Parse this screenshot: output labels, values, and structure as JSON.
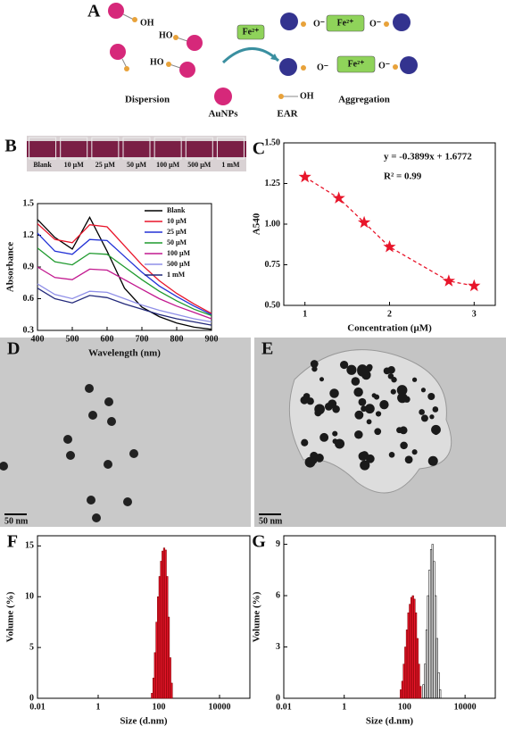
{
  "schematic": {
    "panel": "A",
    "ions": [
      "Fe²⁺",
      "Fe²⁺",
      "Fe²⁺"
    ],
    "hydroxyl_labels": [
      "OH",
      "HO",
      "HO",
      "OH"
    ],
    "oxide_labels": [
      "O⁻",
      "O⁻",
      "O⁻",
      "O⁻"
    ],
    "left_label": "Dispersion",
    "right_label": "Aggregation",
    "legend": [
      "AuNPs",
      "EAR"
    ]
  },
  "photo": {
    "panel": "B",
    "labels": [
      "Blank",
      "10 μM",
      "25 μM",
      "50 μM",
      "100 μM",
      "500 μM",
      "1 mM"
    ]
  },
  "tem": [
    {
      "panel": "D",
      "scale": "50 nm"
    },
    {
      "panel": "E",
      "scale": "50 nm"
    }
  ],
  "chart_data": [
    {
      "type": "line",
      "xlabel": "Wavelength (nm)",
      "ylabel": "Absorbance",
      "x": [
        400,
        450,
        500,
        550,
        600,
        650,
        700,
        750,
        800,
        850,
        900
      ],
      "xlim": [
        400,
        900
      ],
      "xticks": [
        400,
        500,
        600,
        700,
        800,
        900
      ],
      "ylim": [
        0.3,
        1.5
      ],
      "yticks": [
        0.3,
        0.6,
        0.9,
        1.2,
        1.5
      ],
      "legend": "upper right",
      "series": [
        {
          "name": "Blank",
          "color": "#000000",
          "values": [
            1.35,
            1.18,
            1.07,
            1.37,
            1.05,
            0.7,
            0.52,
            0.43,
            0.37,
            0.33,
            0.31
          ]
        },
        {
          "name": "10 μM",
          "color": "#e8152a",
          "values": [
            1.31,
            1.16,
            1.13,
            1.3,
            1.28,
            1.1,
            0.92,
            0.77,
            0.65,
            0.55,
            0.46
          ]
        },
        {
          "name": "25 μM",
          "color": "#2332d6",
          "values": [
            1.22,
            1.05,
            1.02,
            1.16,
            1.15,
            1.0,
            0.85,
            0.72,
            0.62,
            0.53,
            0.45
          ]
        },
        {
          "name": "50 μM",
          "color": "#1f9a2e",
          "values": [
            1.08,
            0.95,
            0.92,
            1.03,
            1.02,
            0.9,
            0.78,
            0.67,
            0.58,
            0.5,
            0.44
          ]
        },
        {
          "name": "100 μM",
          "color": "#c2188f",
          "values": [
            0.9,
            0.8,
            0.78,
            0.88,
            0.87,
            0.78,
            0.69,
            0.6,
            0.53,
            0.47,
            0.41
          ]
        },
        {
          "name": "500 μM",
          "color": "#8f8fe8",
          "values": [
            0.74,
            0.64,
            0.6,
            0.67,
            0.66,
            0.6,
            0.54,
            0.49,
            0.45,
            0.41,
            0.38
          ]
        },
        {
          "name": "1 mM",
          "color": "#22287a",
          "values": [
            0.7,
            0.6,
            0.56,
            0.63,
            0.61,
            0.55,
            0.5,
            0.45,
            0.41,
            0.38,
            0.35
          ]
        }
      ]
    },
    {
      "type": "scatter",
      "panel": "C",
      "xlabel": "Concentration (μM)",
      "ylabel": "A540",
      "x": [
        1,
        1.4,
        1.7,
        2,
        2.7,
        3
      ],
      "values": [
        1.29,
        1.16,
        1.01,
        0.86,
        0.65,
        0.62
      ],
      "color": "#e8152a",
      "xlim": [
        0.75,
        3.25
      ],
      "xticks": [
        1,
        2,
        3
      ],
      "ylim": [
        0.5,
        1.5
      ],
      "yticks": [
        {
          "value": 0.5,
          "label": "0.50"
        },
        0.75,
        {
          "value": 1,
          "label": "1.00"
        },
        1.25,
        {
          "value": 1.5,
          "label": "1.50"
        }
      ],
      "annotations": [
        "y = -0.3899x + 1.6772",
        "R² = 0.99"
      ]
    },
    {
      "type": "histogram",
      "panel": "F",
      "xlabel": "Size (d.nm)",
      "ylabel": "Volume (%)",
      "xlog": true,
      "xlim": [
        0.01,
        100000
      ],
      "xticks": [
        0.01,
        1,
        100,
        10000
      ],
      "ylim": [
        0,
        16
      ],
      "yticks": [
        0,
        5,
        10,
        15
      ],
      "series": [
        {
          "color": "#e8152a",
          "filled": true,
          "bins": [
            56.2,
            63.1,
            70.8,
            79.4,
            89.1,
            100,
            112.2,
            125.9,
            141.3,
            158.5,
            177.8,
            199.5,
            223.9,
            251.2,
            281.8
          ],
          "values": [
            0.5,
            2,
            4.5,
            7.5,
            10,
            12,
            13.5,
            14.5,
            14.8,
            14.6,
            12,
            8,
            4,
            1.5
          ]
        }
      ]
    },
    {
      "type": "histogram",
      "panel": "G",
      "xlabel": "Size (d.nm)",
      "ylabel": "Volume (%)",
      "xlog": true,
      "xlim": [
        0.01,
        100000
      ],
      "xticks": [
        0.01,
        1,
        100,
        10000
      ],
      "ylim": [
        0,
        9.5
      ],
      "yticks": [
        0,
        3,
        6,
        9
      ],
      "series": [
        {
          "color": "#e8152a",
          "filled": true,
          "bins": [
            70.8,
            79.4,
            89.1,
            100,
            112.2,
            125.9,
            141.3,
            158.5,
            177.8,
            199.5,
            223.9,
            251.2,
            281.8,
            316.2,
            354.8
          ],
          "values": [
            0.5,
            1,
            2,
            3,
            4,
            5,
            5.5,
            5.9,
            6,
            5.8,
            5,
            3.5,
            2,
            0.7
          ]
        },
        {
          "color": "#000000",
          "filled": false,
          "bins": [
            398.1,
            446.7,
            501.2,
            562.3,
            631,
            707.9,
            794.3,
            891.3,
            1000,
            1122,
            1259,
            1413,
            1585
          ],
          "values": [
            0.8,
            2,
            4,
            6,
            7.5,
            8.7,
            9,
            8,
            6,
            3.5,
            1.5,
            0.5
          ]
        }
      ]
    }
  ]
}
